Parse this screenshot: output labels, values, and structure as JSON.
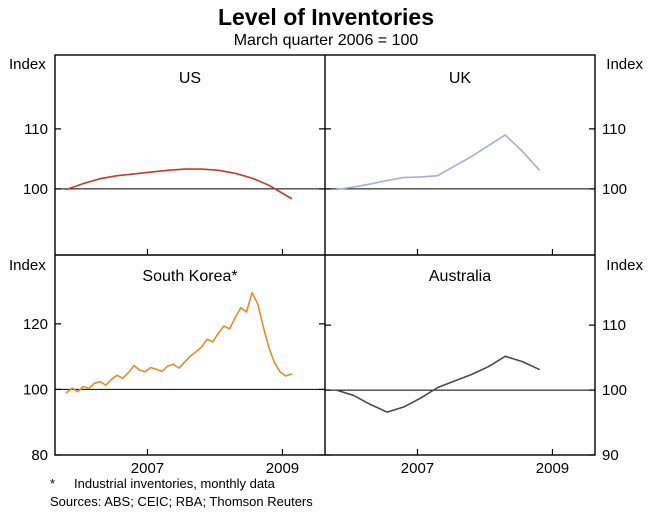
{
  "chart_data": {
    "type": "line",
    "title": "Level of Inventories",
    "subtitle": "March quarter 2006 = 100",
    "index_axis_label": "Index",
    "footnote_marker": "*",
    "footnote_text": "Industrial inventories, monthly data",
    "sources": "Sources: ABS; CEIC; RBA; Thomson Reuters",
    "x_domain": [
      2005.83,
      2009.83
    ],
    "x_ticks": [
      {
        "x": 2007.2,
        "label": "2007"
      },
      {
        "x": 2009.2,
        "label": "2009"
      }
    ],
    "panels": [
      {
        "id": "us",
        "label": "US",
        "row": 0,
        "col": 0,
        "axis_side": "left",
        "ylim": [
          89,
          122.3
        ],
        "yticks": [
          100,
          110
        ],
        "series": {
          "name": "US",
          "color": "#c23b2e",
          "x": [
            2006.0,
            2006.25,
            2006.5,
            2006.75,
            2007.0,
            2007.25,
            2007.5,
            2007.75,
            2008.0,
            2008.25,
            2008.5,
            2008.75,
            2009.0,
            2009.33
          ],
          "values": [
            99.9,
            100.9,
            101.7,
            102.2,
            102.5,
            102.8,
            103.1,
            103.3,
            103.3,
            103.1,
            102.6,
            101.8,
            100.6,
            98.4
          ]
        }
      },
      {
        "id": "uk",
        "label": "UK",
        "row": 0,
        "col": 1,
        "axis_side": "right",
        "ylim": [
          89,
          122.3
        ],
        "yticks": [
          100,
          110
        ],
        "series": {
          "name": "UK",
          "color": "#a6aeda",
          "x": [
            2006.0,
            2006.25,
            2006.5,
            2006.75,
            2007.0,
            2007.25,
            2007.5,
            2007.75,
            2008.0,
            2008.25,
            2008.5,
            2008.75,
            2009.0
          ],
          "values": [
            99.9,
            100.3,
            100.8,
            101.4,
            101.9,
            102.0,
            102.2,
            103.8,
            105.4,
            107.2,
            109.0,
            106.3,
            103.2
          ]
        }
      },
      {
        "id": "south-korea",
        "label": "South Korea*",
        "row": 1,
        "col": 0,
        "axis_side": "left",
        "ylim": [
          80,
          141
        ],
        "yticks": [
          80,
          100,
          120
        ],
        "series": {
          "name": "South Korea",
          "color": "#df8d2d",
          "x_start": 2006.0,
          "x_step": 0.08333,
          "values": [
            99.0,
            100.4,
            99.3,
            100.9,
            100.3,
            101.9,
            102.4,
            101.3,
            103.1,
            104.3,
            103.4,
            105.1,
            107.3,
            105.9,
            105.4,
            106.7,
            106.1,
            105.5,
            107.1,
            107.7,
            106.5,
            108.3,
            110.1,
            111.4,
            112.9,
            115.3,
            114.5,
            117.1,
            119.3,
            118.5,
            121.9,
            124.9,
            123.6,
            129.5,
            126.1,
            119.1,
            112.6,
            108.1,
            105.3,
            104.1,
            104.7
          ]
        }
      },
      {
        "id": "australia",
        "label": "Australia",
        "row": 1,
        "col": 1,
        "axis_side": "right",
        "ylim": [
          90,
          120.8
        ],
        "yticks": [
          90,
          100,
          110
        ],
        "series": {
          "name": "Australia",
          "color": "#4a4a4a",
          "x": [
            2006.0,
            2006.25,
            2006.5,
            2006.75,
            2007.0,
            2007.25,
            2007.5,
            2007.75,
            2008.0,
            2008.25,
            2008.5,
            2008.75,
            2009.0
          ],
          "values": [
            100.0,
            99.2,
            97.8,
            96.6,
            97.4,
            98.8,
            100.4,
            101.4,
            102.4,
            103.6,
            105.2,
            104.4,
            103.2
          ]
        }
      }
    ]
  }
}
